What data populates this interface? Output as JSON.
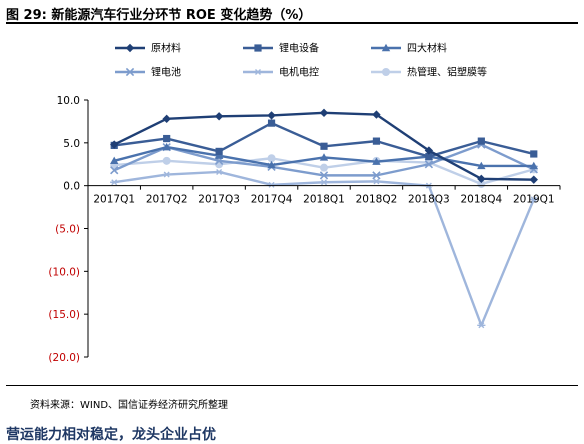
{
  "figure": {
    "title": "图 29:  新能源汽车行业分环节 ROE 变化趋势（%）",
    "source": "资料来源：WIND、国信证券经济研究所整理",
    "next_heading": "营运能力相对稳定，龙头企业占优"
  },
  "chart_data": {
    "type": "line",
    "title": "",
    "xlabel": "",
    "ylabel": "",
    "ylim": [
      -20,
      10
    ],
    "yticks": [
      "10.0",
      "5.0",
      "0.0",
      "(5.0)",
      "(10.0)",
      "(15.0)",
      "(20.0)"
    ],
    "ytick_values": [
      10,
      5,
      0,
      -5,
      -10,
      -15,
      -20
    ],
    "categories": [
      "2017Q1",
      "2017Q2",
      "2017Q3",
      "2017Q4",
      "2018Q1",
      "2018Q2",
      "2018Q3",
      "2018Q4",
      "2019Q1"
    ],
    "grid": false,
    "legend_position": "top",
    "series": [
      {
        "name": "原材料",
        "color": "#1f3f75",
        "marker": "diamond",
        "values": [
          4.8,
          7.8,
          8.1,
          8.2,
          8.5,
          8.3,
          4.1,
          0.8,
          0.7
        ]
      },
      {
        "name": "锂电设备",
        "color": "#3a5d96",
        "marker": "square",
        "values": [
          4.7,
          5.5,
          4.0,
          7.3,
          4.6,
          5.2,
          3.4,
          5.2,
          3.7
        ]
      },
      {
        "name": "四大材料",
        "color": "#4a72ad",
        "marker": "triangle",
        "values": [
          2.9,
          4.5,
          3.5,
          2.4,
          3.3,
          2.8,
          3.4,
          2.3,
          2.3
        ]
      },
      {
        "name": "锂电池",
        "color": "#7d9ccd",
        "marker": "x",
        "values": [
          1.8,
          4.5,
          2.9,
          2.2,
          1.2,
          1.2,
          2.5,
          4.8,
          1.9
        ]
      },
      {
        "name": "电机电控",
        "color": "#9fb6dc",
        "marker": "dash",
        "values": [
          0.4,
          1.3,
          1.6,
          0.1,
          0.4,
          0.5,
          0.0,
          -16.3,
          -1.6
        ]
      },
      {
        "name": "热管理、铝塑膜等",
        "color": "#bfcfe8",
        "marker": "circle",
        "values": [
          2.4,
          2.9,
          2.5,
          3.2,
          2.1,
          2.9,
          2.7,
          0.2,
          1.9
        ]
      }
    ]
  }
}
